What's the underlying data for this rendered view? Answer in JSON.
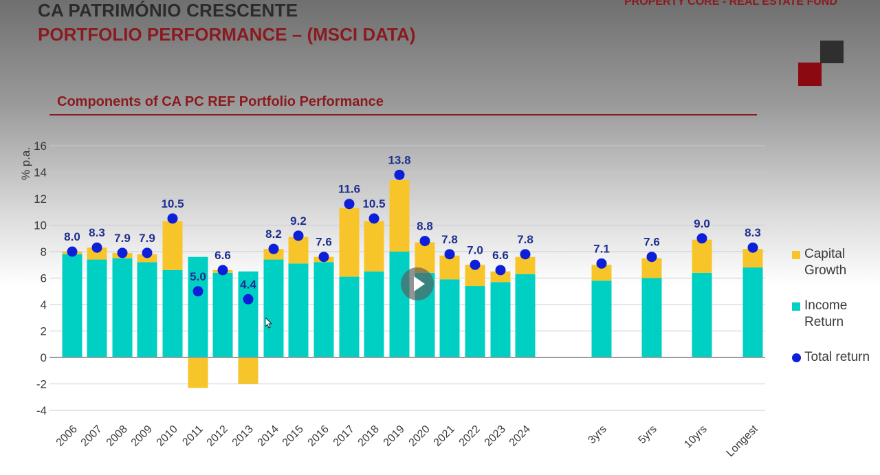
{
  "header": {
    "title": "CA PATRIMÓNIO CRESCENTE",
    "subtitle_bold": "PORTFOLIO PERFORMANCE",
    "subtitle_rest": " – (MSCI DATA)",
    "fund_label": "PROPERTY CORE - REAL ESTATE FUND"
  },
  "colors": {
    "brand_red": "#8b1a1f",
    "income": "#00cfc4",
    "capital": "#f7c52a",
    "total": "#0d1fd8"
  },
  "chart_data": {
    "type": "bar",
    "title": "Components of CA PC REF Portfolio Performance",
    "ylabel": "% p.a.",
    "xlabel": "",
    "ylim": [
      -4,
      16
    ],
    "yticks": [
      -4,
      -2,
      0,
      2,
      4,
      6,
      8,
      10,
      12,
      14,
      16
    ],
    "grid": true,
    "legend_position": "right",
    "categories": [
      "2006",
      "2007",
      "2008",
      "2009",
      "2010",
      "2011",
      "2012",
      "2013",
      "2014",
      "2015",
      "2016",
      "2017",
      "2018",
      "2019",
      "2020",
      "2021",
      "2022",
      "2023",
      "2024",
      "3yrs",
      "5yrs",
      "10yrs",
      "Longest"
    ],
    "series": [
      {
        "name": "Income Return",
        "values": [
          7.8,
          7.4,
          7.5,
          7.2,
          6.6,
          7.6,
          6.4,
          6.5,
          7.4,
          7.1,
          7.2,
          6.1,
          6.5,
          8.0,
          6.4,
          5.9,
          5.4,
          5.7,
          6.3,
          5.8,
          6.0,
          6.4,
          6.8
        ]
      },
      {
        "name": "Capital Growth",
        "values": [
          0.2,
          0.9,
          0.4,
          0.6,
          3.7,
          -2.3,
          0.2,
          -2.0,
          0.8,
          2.0,
          0.4,
          5.2,
          3.8,
          5.4,
          2.3,
          1.8,
          1.6,
          0.8,
          1.3,
          1.2,
          1.5,
          2.5,
          1.4
        ]
      },
      {
        "name": "Total return",
        "values": [
          8.0,
          8.3,
          7.9,
          7.9,
          10.5,
          5.0,
          6.6,
          4.4,
          8.2,
          9.2,
          7.6,
          11.6,
          10.5,
          13.8,
          8.8,
          7.8,
          7.0,
          6.6,
          7.8,
          7.1,
          7.6,
          9.0,
          8.3
        ]
      }
    ],
    "data_labels": [
      "8.0",
      "8.3",
      "7.9",
      "7.9",
      "10.5",
      "5.0",
      "6.6",
      "4.4",
      "8.2",
      "9.2",
      "7.6",
      "11.6",
      "10.5",
      "13.8",
      "8.8",
      "7.8",
      "7.0",
      "6.6",
      "7.8",
      "7.1",
      "7.6",
      "9.0",
      "8.3"
    ],
    "legend": [
      {
        "name": "Capital Growth",
        "line1": "Capital",
        "line2": "Growth"
      },
      {
        "name": "Income Return",
        "line1": "Income",
        "line2": "Return"
      },
      {
        "name": "Total return",
        "line1": "Total return"
      }
    ]
  }
}
